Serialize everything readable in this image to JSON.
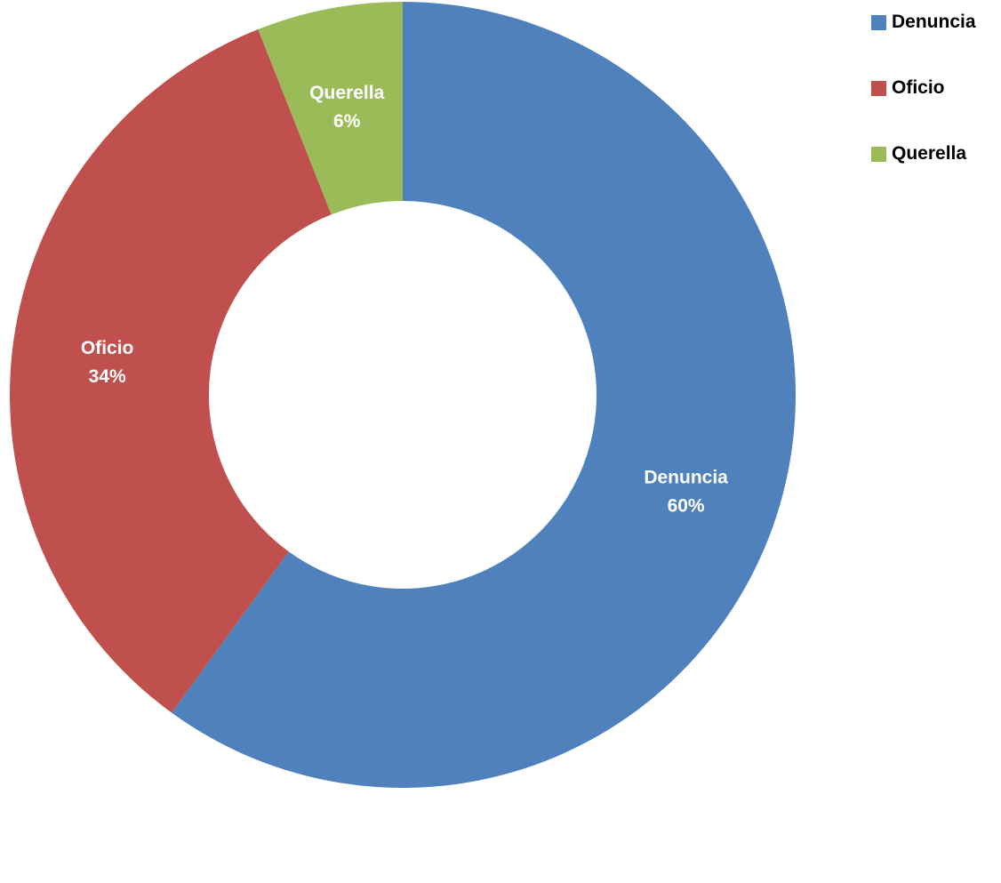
{
  "chart_data": {
    "type": "pie",
    "variant": "donut",
    "categories": [
      "Denuncia",
      "Oficio",
      "Querella"
    ],
    "values": [
      60,
      34,
      6
    ],
    "unit": "%",
    "data_labels": [
      "60%",
      "34%",
      "6%"
    ],
    "colors": [
      "#4F81BD",
      "#C0504D",
      "#9BBB59"
    ],
    "legend_position": "top-right"
  }
}
